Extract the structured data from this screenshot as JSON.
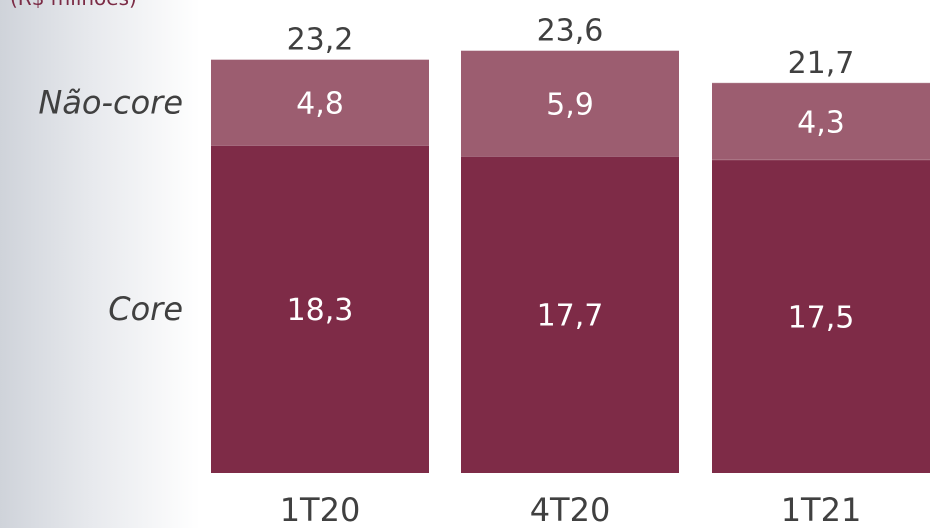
{
  "unit_label": "(R$ milhões)",
  "colors": {
    "core": "#7e2b47",
    "nao_core": "#9c5d70"
  },
  "chart_data": {
    "type": "bar",
    "stacked": true,
    "categories": [
      "1T20",
      "4T20",
      "1T21"
    ],
    "series": [
      {
        "name": "Core",
        "values": [
          18.3,
          17.7,
          17.5
        ],
        "labels": [
          "18,3",
          "17,7",
          "17,5"
        ]
      },
      {
        "name": "Não-core",
        "values": [
          4.8,
          5.9,
          4.3
        ],
        "labels": [
          "4,8",
          "5,9",
          "4,3"
        ]
      }
    ],
    "totals": [
      23.2,
      23.6,
      21.7
    ],
    "total_labels": [
      "23,2",
      "23,6",
      "21,7"
    ],
    "ylabel": "(R$ milhões)",
    "grid": false,
    "legend": "left"
  }
}
